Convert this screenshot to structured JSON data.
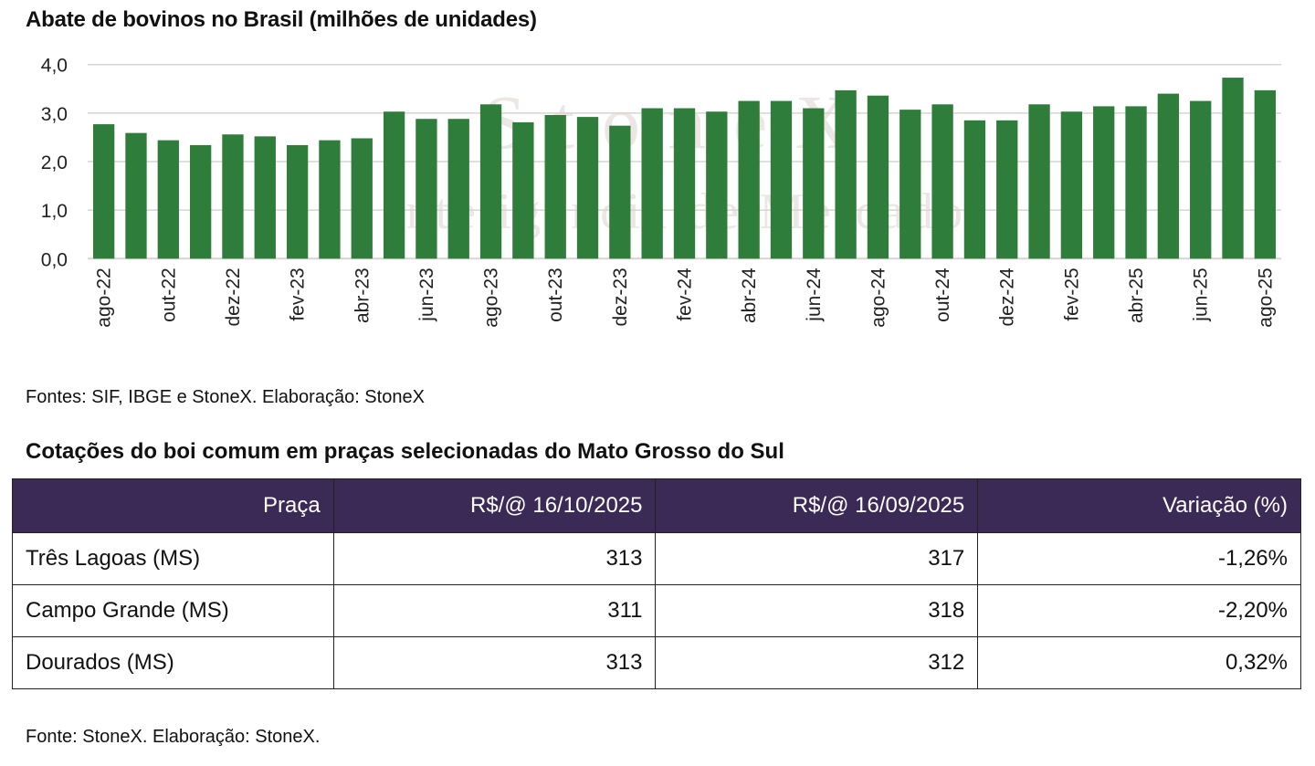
{
  "chart_title": "Abate de bovinos no Brasil (milhões de unidades)",
  "chart_source": "Fontes: SIF, IBGE e StoneX. Elaboração: StoneX",
  "watermark": {
    "line1": "StoneX",
    "line2": "Inteligência de Mercado"
  },
  "colors": {
    "bar": "#2f7d3a",
    "table_header": "#3b2a55",
    "grid": "#d9d3d3"
  },
  "chart_data": {
    "type": "bar",
    "title": "Abate de bovinos no Brasil (milhões de unidades)",
    "xlabel": "",
    "ylabel": "",
    "ylim": [
      0,
      4
    ],
    "yticks": [
      0,
      1,
      2,
      3,
      4
    ],
    "ytick_labels": [
      "0,0",
      "1,0",
      "2,0",
      "3,0",
      "4,0"
    ],
    "grid": true,
    "legend": "none",
    "categories": [
      "ago-22",
      "set-22",
      "out-22",
      "nov-22",
      "dez-22",
      "jan-23",
      "fev-23",
      "mar-23",
      "abr-23",
      "mai-23",
      "jun-23",
      "jul-23",
      "ago-23",
      "set-23",
      "out-23",
      "nov-23",
      "dez-23",
      "jan-24",
      "fev-24",
      "mar-24",
      "abr-24",
      "mai-24",
      "jun-24",
      "jul-24",
      "ago-24",
      "set-24",
      "out-24",
      "nov-24",
      "dez-24",
      "jan-25",
      "fev-25",
      "mar-25",
      "abr-25",
      "mai-25",
      "jun-25",
      "jul-25",
      "ago-25"
    ],
    "xtick_labels": [
      "ago-22",
      "out-22",
      "dez-22",
      "fev-23",
      "abr-23",
      "jun-23",
      "ago-23",
      "out-23",
      "dez-23",
      "fev-24",
      "abr-24",
      "jun-24",
      "ago-24",
      "out-24",
      "dez-24",
      "fev-25",
      "abr-25",
      "jun-25",
      "ago-25"
    ],
    "values": [
      2.77,
      2.59,
      2.44,
      2.34,
      2.56,
      2.52,
      2.34,
      2.44,
      2.48,
      3.03,
      2.88,
      2.88,
      3.18,
      2.81,
      2.96,
      2.92,
      2.74,
      3.1,
      3.1,
      3.03,
      3.25,
      3.25,
      3.1,
      3.47,
      3.36,
      3.07,
      3.18,
      2.85,
      2.85,
      3.18,
      3.03,
      3.14,
      3.14,
      3.4,
      3.25,
      3.73,
      3.47
    ]
  },
  "table": {
    "title": "Cotações do boi comum em praças selecionadas do Mato Grosso do Sul",
    "headers": [
      "Praça",
      "R$/@ 16/10/2025",
      "R$/@ 16/09/2025",
      "Variação (%)"
    ],
    "rows": [
      [
        "Três Lagoas (MS)",
        "313",
        "317",
        "-1,26%"
      ],
      [
        "Campo Grande (MS)",
        "311",
        "318",
        "-2,20%"
      ],
      [
        "Dourados (MS)",
        "313",
        "312",
        "0,32%"
      ]
    ],
    "source": "Fonte: StoneX. Elaboração: StoneX."
  }
}
